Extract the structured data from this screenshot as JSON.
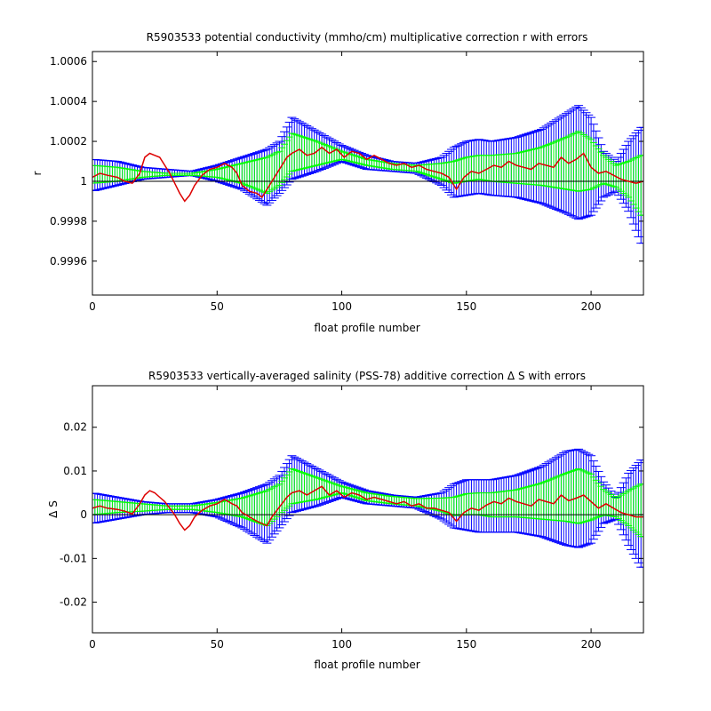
{
  "colors": {
    "outer_error": "#0000ff",
    "inner_error": "#00ff00",
    "correction_line": "#dd0000",
    "reference_line": "#000000",
    "axes": "#000000",
    "background": "#ffffff"
  },
  "chart_data": [
    {
      "type": "line",
      "title": "R5903533 potential conductivity (mmho/cm) multiplicative correction r with errors",
      "xlabel": "float profile number",
      "ylabel": "r",
      "xlim": [
        0,
        221
      ],
      "ylim": [
        0.99943,
        1.00065
      ],
      "xticks": [
        0,
        50,
        100,
        150,
        200
      ],
      "xtick_labels": [
        "0",
        "50",
        "100",
        "150",
        "200"
      ],
      "yticks": [
        0.9996,
        0.9998,
        1.0,
        1.0002,
        1.0004,
        1.0006
      ],
      "ytick_labels": [
        "0.9996",
        "0.9998",
        "1",
        "1.0002",
        "1.0004",
        "1.0006"
      ],
      "reference_line": 1.0,
      "grid": false,
      "legend": "none",
      "series": [
        {
          "role": "error-outer",
          "x": [
            0,
            10,
            20,
            30,
            40,
            50,
            60,
            70,
            75,
            80,
            90,
            100,
            110,
            120,
            130,
            140,
            145,
            150,
            155,
            160,
            170,
            180,
            190,
            195,
            200,
            205,
            210,
            215,
            220
          ],
          "upper": [
            1.00011,
            1.0001,
            1.00007,
            1.00006,
            1.00005,
            1.00008,
            1.00012,
            1.00016,
            1.0002,
            1.00032,
            1.00025,
            1.00018,
            1.00013,
            1.0001,
            1.00009,
            1.00012,
            1.00017,
            1.0002,
            1.00021,
            1.0002,
            1.00022,
            1.00026,
            1.00034,
            1.00038,
            1.00032,
            1.00015,
            1.0001,
            1.0002,
            1.00027
          ],
          "lower": [
            0.99995,
            0.99998,
            1.00001,
            1.00002,
            1.00003,
            1.0,
            0.99996,
            0.99988,
            0.99994,
            1.00001,
            1.00005,
            1.0001,
            1.00006,
            1.00005,
            1.00004,
            0.99998,
            0.99992,
            0.99993,
            0.99994,
            0.99993,
            0.99992,
            0.99989,
            0.99984,
            0.99981,
            0.99983,
            0.99992,
            0.99995,
            0.99985,
            0.99969
          ]
        },
        {
          "role": "error-inner",
          "x": [
            0,
            10,
            20,
            30,
            40,
            50,
            60,
            70,
            75,
            80,
            90,
            100,
            110,
            120,
            130,
            140,
            145,
            150,
            155,
            160,
            170,
            180,
            190,
            195,
            200,
            205,
            210,
            215,
            220
          ],
          "upper": [
            1.00008,
            1.00007,
            1.00005,
            1.00004,
            1.00004,
            1.00006,
            1.00009,
            1.00012,
            1.00015,
            1.00024,
            1.0002,
            1.00015,
            1.00011,
            1.00009,
            1.00008,
            1.00009,
            1.0001,
            1.00012,
            1.00013,
            1.00013,
            1.00014,
            1.00017,
            1.00022,
            1.00025,
            1.00021,
            1.00013,
            1.00008,
            1.0001,
            1.00013
          ],
          "lower": [
            0.99999,
            1.0,
            1.00002,
            1.00003,
            1.00003,
            1.00002,
            0.99999,
            0.99994,
            0.99998,
            1.00005,
            1.00008,
            1.00011,
            1.00008,
            1.00006,
            1.00005,
            1.00001,
            0.99999,
            1.0,
            1.00001,
            1.0,
            0.99999,
            0.99998,
            0.99996,
            0.99995,
            0.99996,
            0.99999,
            0.99997,
            0.99992,
            0.99983
          ]
        },
        {
          "role": "correction",
          "x": [
            0,
            3,
            6,
            10,
            13,
            16,
            19,
            21,
            23,
            25,
            27,
            29,
            31,
            33,
            35,
            37,
            39,
            41,
            44,
            47,
            50,
            53,
            56,
            58,
            60,
            63,
            66,
            68,
            70,
            72,
            74,
            76,
            78,
            80,
            83,
            86,
            89,
            92,
            95,
            98,
            101,
            104,
            107,
            110,
            113,
            116,
            119,
            122,
            125,
            128,
            131,
            134,
            137,
            140,
            143,
            146,
            149,
            152,
            155,
            158,
            161,
            164,
            167,
            170,
            173,
            176,
            179,
            182,
            185,
            188,
            191,
            194,
            197,
            200,
            203,
            206,
            209,
            212,
            215,
            218,
            221
          ],
          "y": [
            1.00002,
            1.00004,
            1.00003,
            1.00002,
            1.0,
            0.99999,
            1.00004,
            1.00012,
            1.00014,
            1.00013,
            1.00012,
            1.00008,
            1.00004,
            0.99999,
            0.99994,
            0.9999,
            0.99993,
            0.99998,
            1.00003,
            1.00006,
            1.00007,
            1.00009,
            1.00007,
            1.00004,
            0.99998,
            0.99995,
            0.99994,
            0.99992,
            0.99996,
            1.0,
            1.00004,
            1.00008,
            1.00012,
            1.00014,
            1.00016,
            1.00013,
            1.00014,
            1.00017,
            1.00014,
            1.00016,
            1.00012,
            1.00015,
            1.00014,
            1.00011,
            1.00013,
            1.00011,
            1.00009,
            1.00008,
            1.00009,
            1.00007,
            1.00008,
            1.00006,
            1.00005,
            1.00004,
            1.00002,
            0.99996,
            1.00002,
            1.00005,
            1.00004,
            1.00006,
            1.00008,
            1.00007,
            1.0001,
            1.00008,
            1.00007,
            1.00006,
            1.00009,
            1.00008,
            1.00007,
            1.00012,
            1.00009,
            1.00011,
            1.00014,
            1.00007,
            1.00004,
            1.00005,
            1.00003,
            1.00001,
            1.0,
            0.99999,
            1.0
          ]
        }
      ]
    },
    {
      "type": "line",
      "title": "R5903533 vertically-averaged salinity (PSS-78) additive correction Δ S with errors",
      "xlabel": "float profile number",
      "ylabel": "Δ S",
      "xlim": [
        0,
        221
      ],
      "ylim": [
        -0.027,
        0.0295
      ],
      "xticks": [
        0,
        50,
        100,
        150,
        200
      ],
      "xtick_labels": [
        "0",
        "50",
        "100",
        "150",
        "200"
      ],
      "yticks": [
        -0.02,
        -0.01,
        0,
        0.01,
        0.02
      ],
      "ytick_labels": [
        "-0.02",
        "-0.01",
        "0",
        "0.01",
        "0.02"
      ],
      "reference_line": 0,
      "grid": false,
      "legend": "none",
      "series": [
        {
          "role": "error-outer",
          "x": [
            0,
            10,
            20,
            30,
            40,
            50,
            60,
            70,
            75,
            80,
            90,
            100,
            110,
            120,
            130,
            140,
            145,
            150,
            155,
            160,
            170,
            180,
            190,
            195,
            200,
            205,
            210,
            215,
            220
          ],
          "upper": [
            0.005,
            0.004,
            0.003,
            0.0025,
            0.0025,
            0.0035,
            0.005,
            0.007,
            0.009,
            0.0135,
            0.0105,
            0.0075,
            0.0055,
            0.0045,
            0.004,
            0.005,
            0.007,
            0.008,
            0.008,
            0.008,
            0.009,
            0.011,
            0.0145,
            0.015,
            0.0135,
            0.0075,
            0.004,
            0.0095,
            0.0125
          ],
          "lower": [
            -0.002,
            -0.001,
            0.0,
            0.0005,
            0.0005,
            -0.0005,
            -0.003,
            -0.0065,
            -0.003,
            0.0005,
            0.002,
            0.004,
            0.0025,
            0.002,
            0.0015,
            -0.001,
            -0.003,
            -0.0035,
            -0.004,
            -0.004,
            -0.004,
            -0.005,
            -0.007,
            -0.0075,
            -0.0065,
            -0.002,
            -0.001,
            -0.007,
            -0.012
          ]
        },
        {
          "role": "error-inner",
          "x": [
            0,
            10,
            20,
            30,
            40,
            50,
            60,
            70,
            75,
            80,
            90,
            100,
            110,
            120,
            130,
            140,
            145,
            150,
            155,
            160,
            170,
            180,
            190,
            195,
            200,
            205,
            210,
            215,
            220
          ],
          "upper": [
            0.0035,
            0.003,
            0.0025,
            0.002,
            0.002,
            0.0028,
            0.0038,
            0.0055,
            0.007,
            0.0105,
            0.0085,
            0.0065,
            0.005,
            0.0042,
            0.0037,
            0.0038,
            0.004,
            0.0048,
            0.005,
            0.005,
            0.0057,
            0.0072,
            0.0095,
            0.0105,
            0.0093,
            0.0058,
            0.0038,
            0.0055,
            0.007
          ],
          "lower": [
            0.0,
            0.0005,
            0.0008,
            0.0012,
            0.0012,
            0.0005,
            -0.0005,
            -0.0025,
            0.0,
            0.0025,
            0.0035,
            0.005,
            0.0032,
            0.0025,
            0.002,
            0.0008,
            -0.0002,
            0.0,
            0.0,
            -0.0005,
            -0.0005,
            -0.001,
            -0.0015,
            -0.002,
            -0.0012,
            0.0,
            -0.0005,
            -0.0025,
            -0.005
          ]
        },
        {
          "role": "correction",
          "x": [
            0,
            3,
            6,
            10,
            13,
            16,
            19,
            21,
            23,
            25,
            27,
            29,
            31,
            33,
            35,
            37,
            39,
            41,
            44,
            47,
            50,
            53,
            56,
            58,
            60,
            63,
            66,
            68,
            70,
            72,
            74,
            76,
            78,
            80,
            83,
            86,
            89,
            92,
            95,
            98,
            101,
            104,
            107,
            110,
            113,
            116,
            119,
            122,
            125,
            128,
            131,
            134,
            137,
            140,
            143,
            146,
            149,
            152,
            155,
            158,
            161,
            164,
            167,
            170,
            173,
            176,
            179,
            182,
            185,
            188,
            191,
            194,
            197,
            200,
            203,
            206,
            209,
            212,
            215,
            218,
            221
          ],
          "y": [
            0.0015,
            0.002,
            0.0015,
            0.0012,
            0.0008,
            0.0002,
            0.0025,
            0.0045,
            0.0055,
            0.005,
            0.004,
            0.003,
            0.0015,
            0.0,
            -0.002,
            -0.0035,
            -0.0025,
            -0.0005,
            0.001,
            0.002,
            0.0025,
            0.0035,
            0.0025,
            0.002,
            0.0005,
            -0.0005,
            -0.0015,
            -0.002,
            -0.0025,
            -0.0005,
            0.001,
            0.0025,
            0.004,
            0.005,
            0.0055,
            0.0045,
            0.0055,
            0.0065,
            0.0045,
            0.0055,
            0.004,
            0.005,
            0.0045,
            0.0035,
            0.004,
            0.0035,
            0.003,
            0.0025,
            0.003,
            0.002,
            0.0025,
            0.0015,
            0.0015,
            0.001,
            0.0005,
            -0.0015,
            0.0005,
            0.0015,
            0.001,
            0.0022,
            0.003,
            0.0025,
            0.0038,
            0.003,
            0.0025,
            0.002,
            0.0035,
            0.003,
            0.0025,
            0.0045,
            0.0032,
            0.0038,
            0.0045,
            0.003,
            0.0015,
            0.0025,
            0.0015,
            0.0005,
            0.0,
            -0.0005,
            -0.0005
          ]
        }
      ]
    }
  ]
}
